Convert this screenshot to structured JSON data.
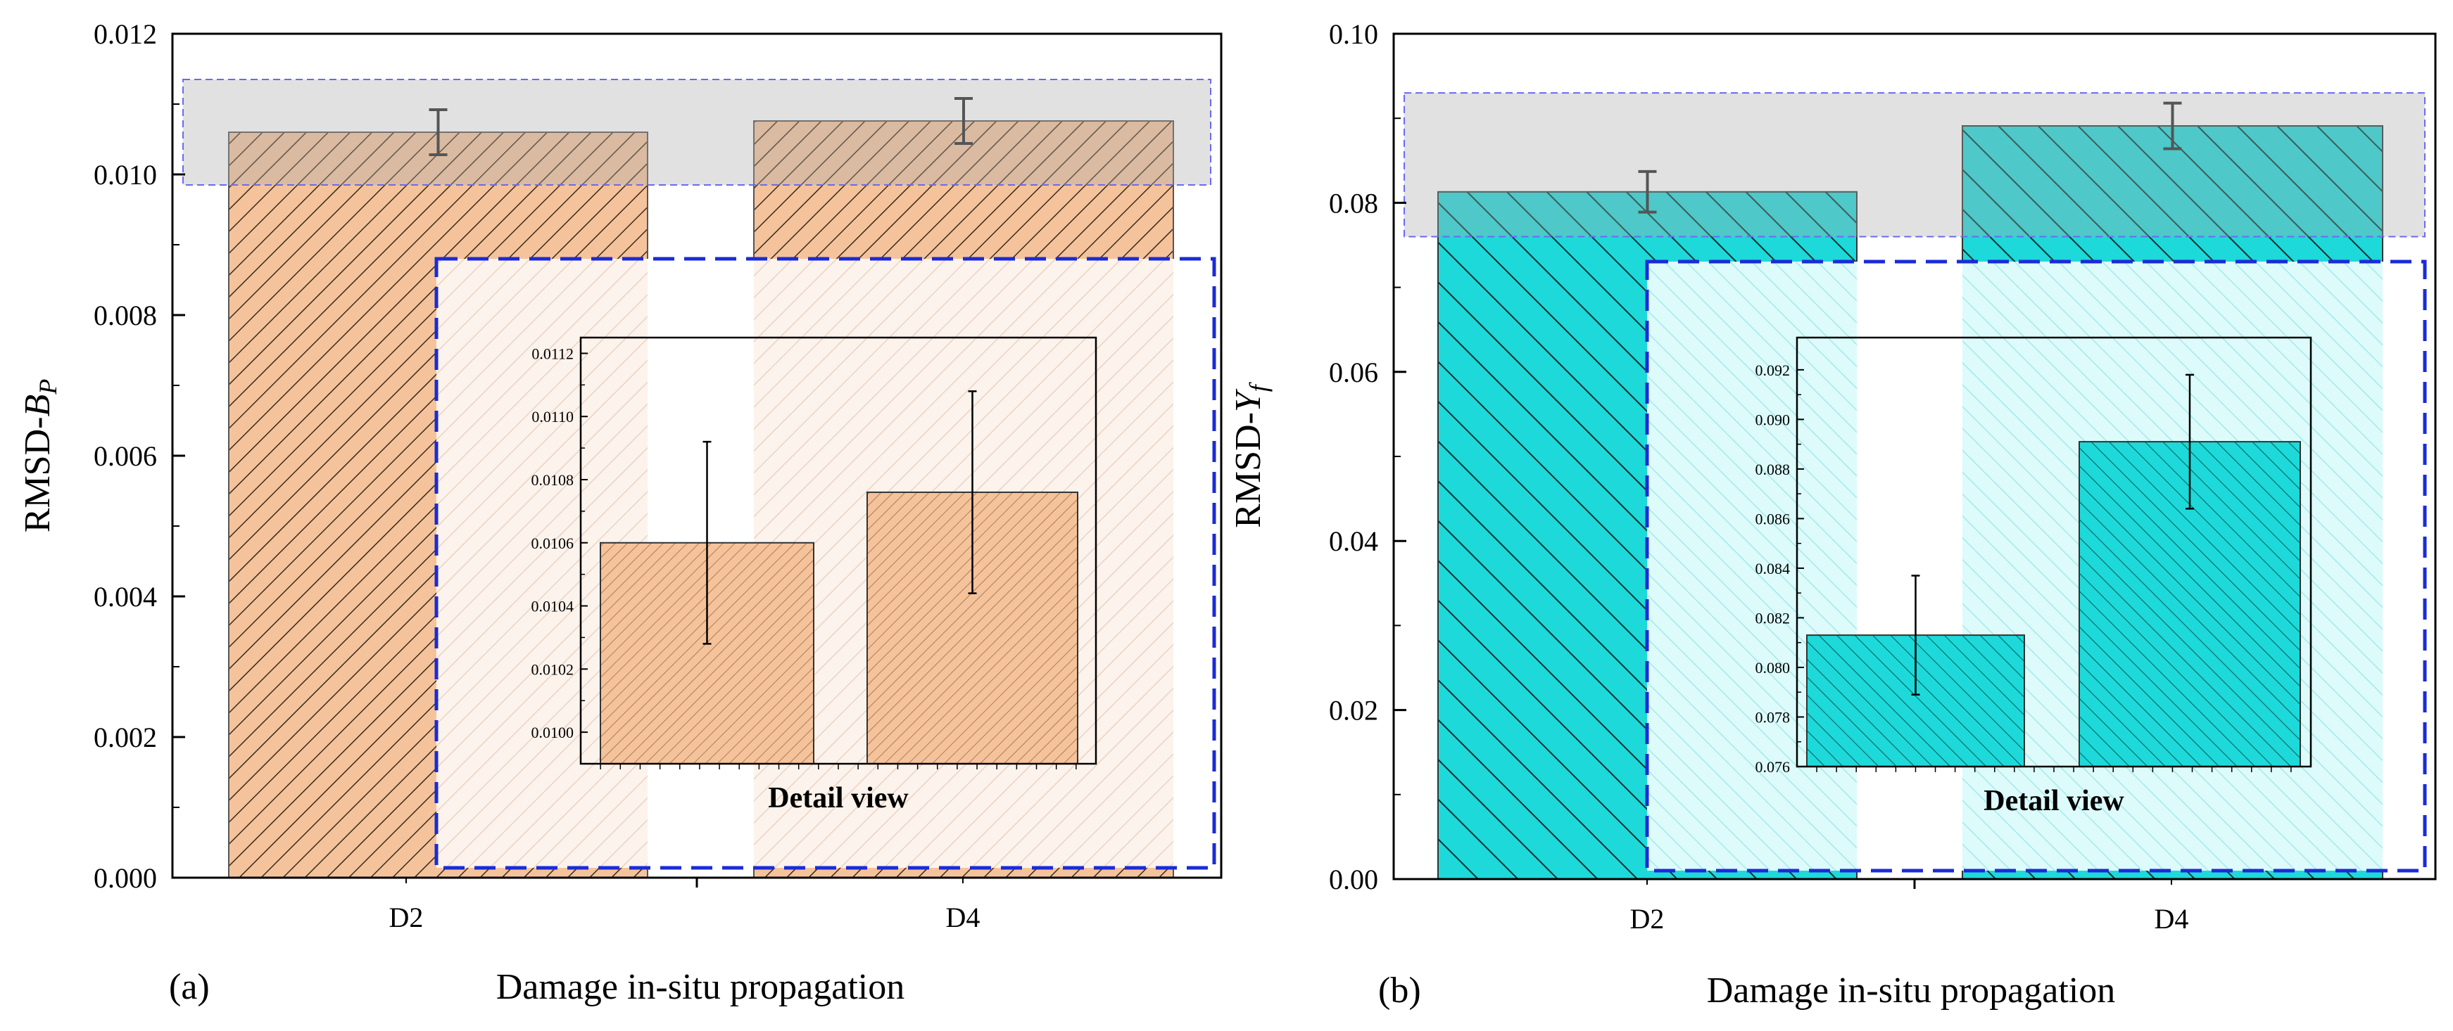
{
  "figure_xlabel": "Damage in-situ propagation",
  "chart_data": [
    {
      "type": "bar",
      "panel_label": "(a)",
      "title": "",
      "xlabel": "Damage in-situ propagation",
      "ylabel_main": "RMSD-",
      "ylabel_symbol": "B",
      "ylabel_subscript": "P",
      "categories": [
        "D2",
        "D4"
      ],
      "values": [
        0.0106,
        0.01076
      ],
      "errors": [
        0.00032,
        0.00032
      ],
      "ylim": [
        0,
        0.012
      ],
      "yticks": [
        0.0,
        0.002,
        0.004,
        0.006,
        0.008,
        0.01,
        0.012
      ],
      "ytick_labels": [
        "0.000",
        "0.002",
        "0.004",
        "0.006",
        "0.008",
        "0.010",
        "0.012"
      ],
      "zoom_band": [
        0.00985,
        0.01135
      ],
      "bar_color": "#F5C39B",
      "hatch_color": "#3A2A1A",
      "inset": {
        "title": "Detail view",
        "ylim": [
          0.0099,
          0.01125
        ],
        "yticks": [
          0.01,
          0.0102,
          0.0104,
          0.0106,
          0.0108,
          0.011,
          0.0112
        ],
        "ytick_labels": [
          "0.0100",
          "0.0102",
          "0.0104",
          "0.0106",
          "0.0108",
          "0.0110",
          "0.0112"
        ]
      }
    },
    {
      "type": "bar",
      "panel_label": "(b)",
      "title": "",
      "xlabel": "Damage in-situ propagation",
      "ylabel_main": "RMSD-",
      "ylabel_symbol": "Y",
      "ylabel_subscript": "f",
      "categories": [
        "D2",
        "D4"
      ],
      "values": [
        0.0813,
        0.0891
      ],
      "errors": [
        0.0024,
        0.0027
      ],
      "ylim": [
        0,
        0.1
      ],
      "yticks": [
        0.0,
        0.02,
        0.04,
        0.06,
        0.08,
        0.1
      ],
      "ytick_labels": [
        "0.00",
        "0.02",
        "0.04",
        "0.06",
        "0.08",
        "0.10"
      ],
      "zoom_band": [
        0.076,
        0.093
      ],
      "bar_color": "#1ED9D9",
      "hatch_color": "#003333",
      "inset": {
        "title": "Detail view",
        "ylim": [
          0.076,
          0.0933
        ],
        "yticks": [
          0.076,
          0.078,
          0.08,
          0.082,
          0.084,
          0.086,
          0.088,
          0.09,
          0.092
        ],
        "ytick_labels": [
          "0.076",
          "0.078",
          "0.080",
          "0.082",
          "0.084",
          "0.086",
          "0.088",
          "0.090",
          "0.092"
        ]
      }
    }
  ]
}
